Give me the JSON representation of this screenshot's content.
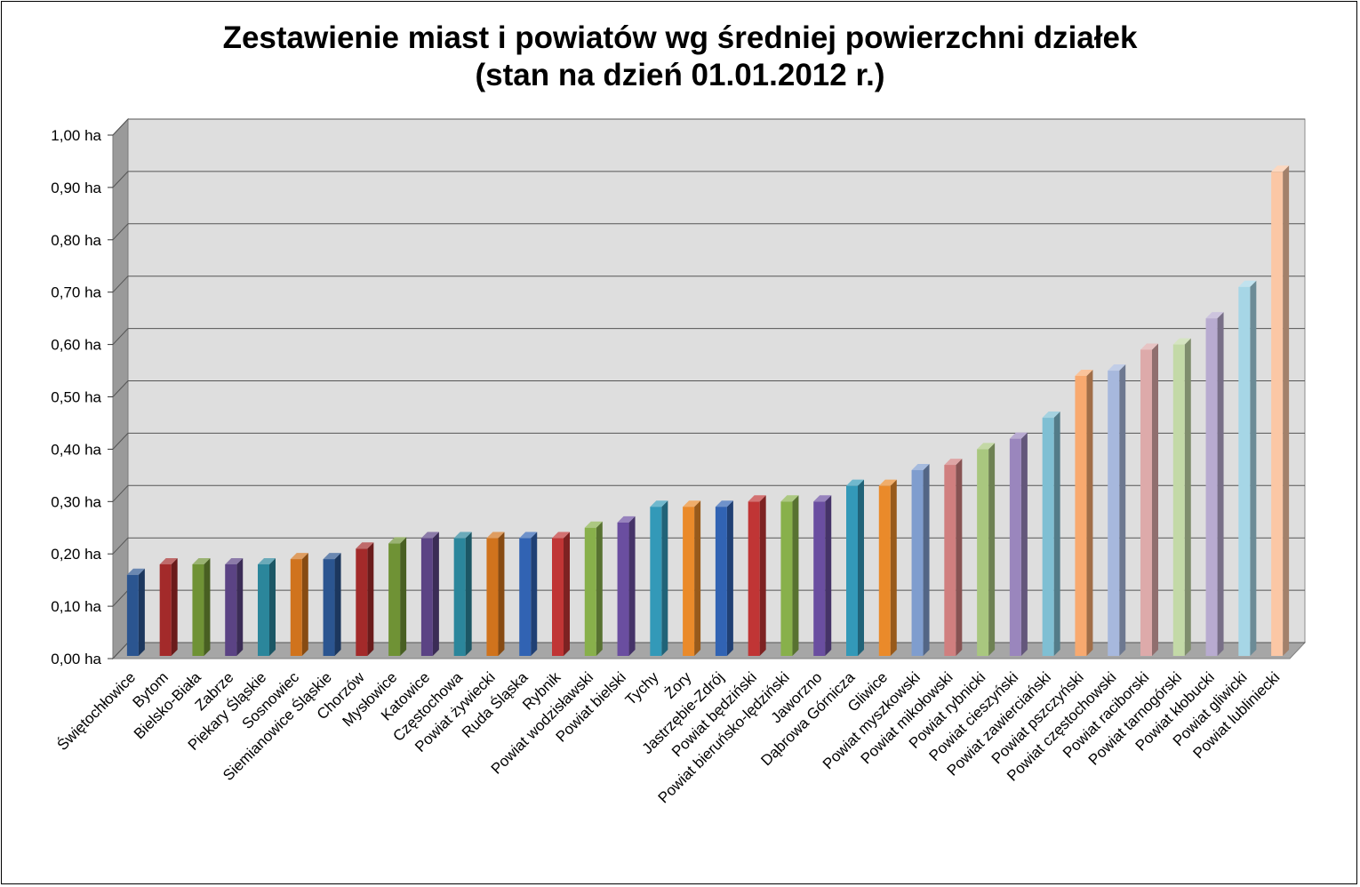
{
  "chart_data": {
    "type": "bar",
    "title": "Zestawienie miast i powiatów wg średniej powierzchni działek",
    "subtitle": "(stan na dzień 01.01.2012 r.)",
    "xlabel": "",
    "ylabel": "",
    "ylim": [
      0,
      1
    ],
    "yticks": [
      "0,00 ha",
      "0,10 ha",
      "0,20 ha",
      "0,30 ha",
      "0,40 ha",
      "0,50 ha",
      "0,60 ha",
      "0,70 ha",
      "0,80 ha",
      "0,90 ha",
      "1,00 ha"
    ],
    "grid": true,
    "legend": "none",
    "categories": [
      "Świętochłowice",
      "Bytom",
      "Bielsko-Biała",
      "Zabrze",
      "Piekary Śląskie",
      "Sosnowiec",
      "Siemianowice Śląskie",
      "Chorzów",
      "Mysłowice",
      "Katowice",
      "Częstochowa",
      "Powiat żywiecki",
      "Ruda Śląska",
      "Rybnik",
      "Powiat wodzisławski",
      "Powiat bielski",
      "Tychy",
      "Żory",
      "Jastrzębie-Zdrój",
      "Powiat będziński",
      "Powiat bieruńsko-lędziński",
      "Jaworzno",
      "Dąbrowa Górnicza",
      "Gliwice",
      "Powiat myszkowski",
      "Powiat mikołowski",
      "Powiat rybnicki",
      "Powiat cieszyński",
      "Powiat zawierciański",
      "Powiat pszczyński",
      "Powiat częstochowski",
      "Powiat raciborski",
      "Powiat tarnogórski",
      "Powiat kłobucki",
      "Powiat gliwicki",
      "Powiat lubliniecki"
    ],
    "values": [
      0.16,
      0.18,
      0.18,
      0.18,
      0.18,
      0.19,
      0.19,
      0.21,
      0.22,
      0.23,
      0.23,
      0.23,
      0.23,
      0.23,
      0.25,
      0.26,
      0.29,
      0.29,
      0.29,
      0.3,
      0.3,
      0.3,
      0.33,
      0.33,
      0.36,
      0.37,
      0.4,
      0.42,
      0.46,
      0.54,
      0.55,
      0.59,
      0.6,
      0.65,
      0.71,
      0.93
    ],
    "colors": [
      "#2b5590",
      "#a32a2a",
      "#6f9235",
      "#5b4384",
      "#2b869b",
      "#d0731d",
      "#2b5590",
      "#a32a2a",
      "#6f9235",
      "#5b4384",
      "#2b869b",
      "#d0731d",
      "#3163b3",
      "#c03535",
      "#88b04b",
      "#6a4ea0",
      "#3399b8",
      "#ea8a2a",
      "#3163b3",
      "#c03535",
      "#88b04b",
      "#6a4ea0",
      "#3399b8",
      "#ea8a2a",
      "#7f9dce",
      "#d07f7f",
      "#a9c77f",
      "#9a86bd",
      "#7fbfd3",
      "#f8a96f",
      "#a7b8dd",
      "#ddaaaa",
      "#c3d9a7",
      "#b8abd0",
      "#a6d6e6",
      "#fbc7a5"
    ]
  }
}
